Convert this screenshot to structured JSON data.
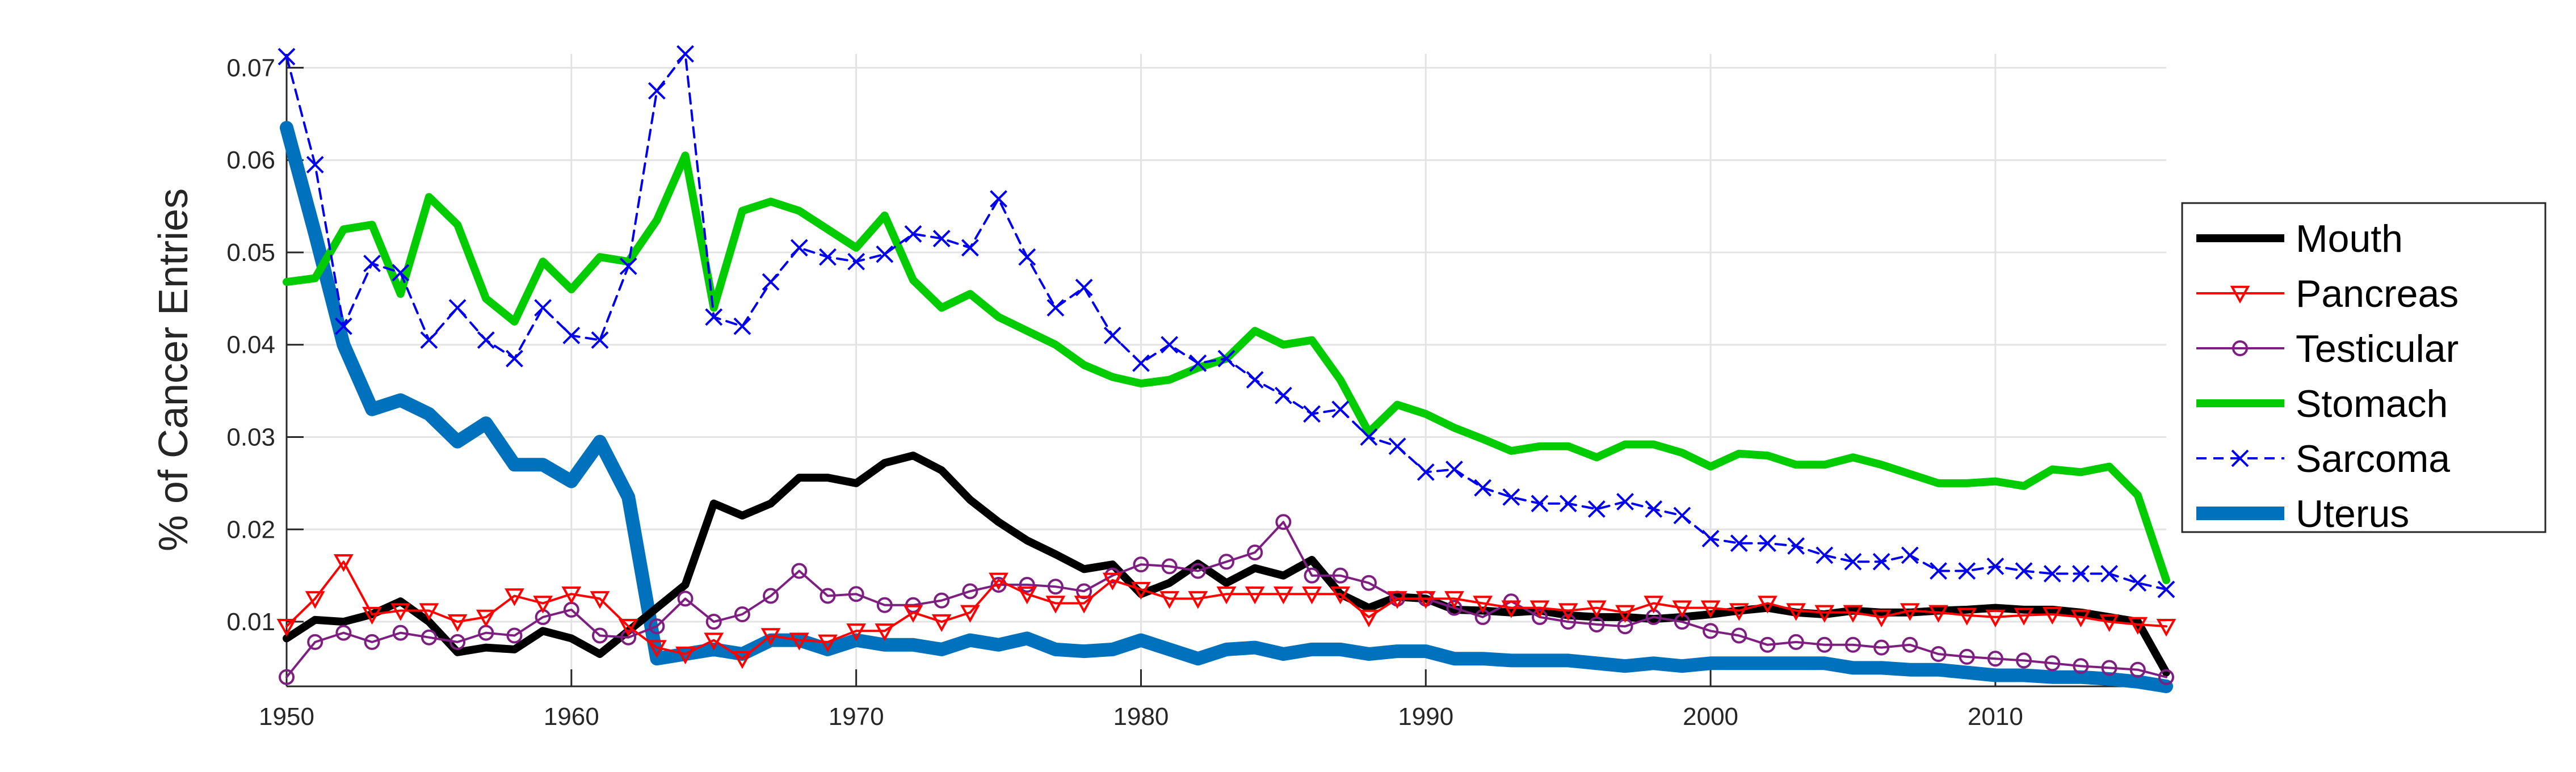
{
  "chart_data": {
    "type": "line",
    "title": "",
    "xlabel": "",
    "ylabel": "% of Cancer Entries",
    "xlim": [
      1950,
      2016
    ],
    "ylim": [
      0.003,
      0.0715
    ],
    "xticks": [
      1950,
      1960,
      1970,
      1980,
      1990,
      2000,
      2010
    ],
    "yticks": [
      0.01,
      0.02,
      0.03,
      0.04,
      0.05,
      0.06,
      0.07
    ],
    "xtick_labels": [
      "1950",
      "1960",
      "1970",
      "1980",
      "1990",
      "2000",
      "2010"
    ],
    "ytick_labels": [
      "0.01",
      "0.02",
      "0.03",
      "0.04",
      "0.05",
      "0.06",
      "0.07"
    ],
    "grid": true,
    "legend_position": "right",
    "x": [
      1950,
      1951,
      1952,
      1953,
      1954,
      1955,
      1956,
      1957,
      1958,
      1959,
      1960,
      1961,
      1962,
      1963,
      1964,
      1965,
      1966,
      1967,
      1968,
      1969,
      1970,
      1971,
      1972,
      1973,
      1974,
      1975,
      1976,
      1977,
      1978,
      1979,
      1980,
      1981,
      1982,
      1983,
      1984,
      1985,
      1986,
      1987,
      1988,
      1989,
      1990,
      1991,
      1992,
      1993,
      1994,
      1995,
      1996,
      1997,
      1998,
      1999,
      2000,
      2001,
      2002,
      2003,
      2004,
      2005,
      2006,
      2007,
      2008,
      2009,
      2010,
      2011,
      2012,
      2013,
      2014,
      2015,
      2016
    ],
    "series": [
      {
        "name": "Mouth",
        "color": "#000000",
        "line_style": "solid",
        "marker": "none",
        "values": [
          0.0082,
          0.0102,
          0.01,
          0.0108,
          0.0122,
          0.01,
          0.0067,
          0.0072,
          0.007,
          0.009,
          0.0082,
          0.0065,
          0.009,
          0.0115,
          0.014,
          0.0228,
          0.0215,
          0.0228,
          0.0256,
          0.0256,
          0.025,
          0.0272,
          0.028,
          0.0264,
          0.0232,
          0.0208,
          0.0188,
          0.0173,
          0.0157,
          0.0162,
          0.013,
          0.0142,
          0.0163,
          0.0142,
          0.0158,
          0.015,
          0.0167,
          0.013,
          0.0115,
          0.0127,
          0.0125,
          0.0113,
          0.0112,
          0.011,
          0.0112,
          0.0107,
          0.0105,
          0.0105,
          0.0103,
          0.0105,
          0.0108,
          0.0112,
          0.0115,
          0.011,
          0.0108,
          0.0112,
          0.011,
          0.011,
          0.0112,
          0.0113,
          0.0115,
          0.0113,
          0.0113,
          0.011,
          0.0105,
          0.01,
          0.0045
        ]
      },
      {
        "name": "Pancreas",
        "color": "#ff0000",
        "line_style": "solid",
        "marker": "triangle-down",
        "values": [
          0.0095,
          0.0125,
          0.0165,
          0.0108,
          0.0112,
          0.0112,
          0.01,
          0.0105,
          0.0128,
          0.012,
          0.013,
          0.0125,
          0.0095,
          0.0072,
          0.0065,
          0.008,
          0.006,
          0.0085,
          0.008,
          0.0078,
          0.009,
          0.009,
          0.011,
          0.01,
          0.011,
          0.0145,
          0.013,
          0.012,
          0.012,
          0.0145,
          0.0135,
          0.0125,
          0.0125,
          0.013,
          0.013,
          0.013,
          0.013,
          0.013,
          0.0105,
          0.0125,
          0.0125,
          0.0125,
          0.012,
          0.0115,
          0.0115,
          0.0112,
          0.0115,
          0.011,
          0.012,
          0.0115,
          0.0115,
          0.0112,
          0.012,
          0.0112,
          0.011,
          0.011,
          0.0105,
          0.0112,
          0.011,
          0.0107,
          0.0105,
          0.0107,
          0.0108,
          0.0105,
          0.01,
          0.0097,
          0.0095
        ]
      },
      {
        "name": "Testicular",
        "color": "#7e1e80",
        "line_style": "solid",
        "marker": "circle",
        "values": [
          0.004,
          0.0078,
          0.0088,
          0.0078,
          0.0088,
          0.0083,
          0.0078,
          0.0088,
          0.0085,
          0.0105,
          0.0113,
          0.0085,
          0.0083,
          0.0095,
          0.0125,
          0.01,
          0.0108,
          0.0128,
          0.0155,
          0.0128,
          0.013,
          0.0118,
          0.0118,
          0.0123,
          0.0133,
          0.014,
          0.014,
          0.0138,
          0.0133,
          0.015,
          0.0162,
          0.016,
          0.0155,
          0.0165,
          0.0175,
          0.0208,
          0.015,
          0.015,
          0.0142,
          0.0125,
          0.0125,
          0.0115,
          0.0105,
          0.0122,
          0.0105,
          0.01,
          0.0097,
          0.0095,
          0.0105,
          0.01,
          0.009,
          0.0085,
          0.0075,
          0.0078,
          0.0075,
          0.0075,
          0.0072,
          0.0075,
          0.0065,
          0.0062,
          0.006,
          0.0058,
          0.0055,
          0.0052,
          0.005,
          0.0048,
          0.004
        ]
      },
      {
        "name": "Stomach",
        "color": "#00cc00",
        "line_style": "solid",
        "marker": "none",
        "values": [
          0.0468,
          0.0472,
          0.0525,
          0.053,
          0.0455,
          0.056,
          0.053,
          0.045,
          0.0425,
          0.049,
          0.046,
          0.0495,
          0.049,
          0.0535,
          0.0605,
          0.044,
          0.0545,
          0.0555,
          0.0545,
          0.0525,
          0.0505,
          0.054,
          0.047,
          0.044,
          0.0455,
          0.043,
          0.0415,
          0.04,
          0.0378,
          0.0365,
          0.0358,
          0.0362,
          0.0375,
          0.0385,
          0.0415,
          0.04,
          0.0405,
          0.0362,
          0.0305,
          0.0335,
          0.0325,
          0.031,
          0.0298,
          0.0285,
          0.029,
          0.029,
          0.0278,
          0.0292,
          0.0292,
          0.0283,
          0.0268,
          0.0282,
          0.028,
          0.027,
          0.027,
          0.0278,
          0.027,
          0.026,
          0.025,
          0.025,
          0.0252,
          0.0247,
          0.0265,
          0.0262,
          0.0268,
          0.0237,
          0.0145
        ]
      },
      {
        "name": "Sarcoma",
        "color": "#0000ee",
        "line_style": "dashed",
        "marker": "x",
        "values": [
          0.0712,
          0.0595,
          0.042,
          0.0488,
          0.0478,
          0.0405,
          0.044,
          0.0405,
          0.0385,
          0.044,
          0.041,
          0.0405,
          0.0485,
          0.0675,
          0.0715,
          0.043,
          0.042,
          0.0468,
          0.0505,
          0.0495,
          0.049,
          0.0498,
          0.052,
          0.0515,
          0.0505,
          0.0558,
          0.0495,
          0.044,
          0.0462,
          0.041,
          0.038,
          0.04,
          0.038,
          0.0385,
          0.0362,
          0.0345,
          0.0325,
          0.033,
          0.03,
          0.029,
          0.0262,
          0.0265,
          0.0245,
          0.0235,
          0.0228,
          0.0228,
          0.0222,
          0.023,
          0.0222,
          0.0215,
          0.019,
          0.0185,
          0.0185,
          0.0182,
          0.0172,
          0.0165,
          0.0165,
          0.0172,
          0.0155,
          0.0155,
          0.016,
          0.0155,
          0.0152,
          0.0152,
          0.0152,
          0.0142,
          0.0135
        ]
      },
      {
        "name": "Uterus",
        "color": "#0072bd",
        "line_style": "solid",
        "marker": "none",
        "values": [
          0.0635,
          0.052,
          0.04,
          0.033,
          0.034,
          0.0325,
          0.0295,
          0.0315,
          0.027,
          0.027,
          0.0252,
          0.0295,
          0.0235,
          0.006,
          0.0065,
          0.007,
          0.0065,
          0.008,
          0.008,
          0.007,
          0.008,
          0.0075,
          0.0075,
          0.007,
          0.008,
          0.0075,
          0.0082,
          0.007,
          0.0068,
          0.007,
          0.008,
          0.007,
          0.006,
          0.007,
          0.0072,
          0.0065,
          0.007,
          0.007,
          0.0065,
          0.0068,
          0.0068,
          0.006,
          0.006,
          0.0058,
          0.0058,
          0.0058,
          0.0055,
          0.0052,
          0.0055,
          0.0052,
          0.0055,
          0.0055,
          0.0055,
          0.0055,
          0.0055,
          0.005,
          0.005,
          0.0048,
          0.0048,
          0.0045,
          0.0042,
          0.0042,
          0.004,
          0.004,
          0.0038,
          0.0035,
          0.003
        ]
      }
    ]
  }
}
